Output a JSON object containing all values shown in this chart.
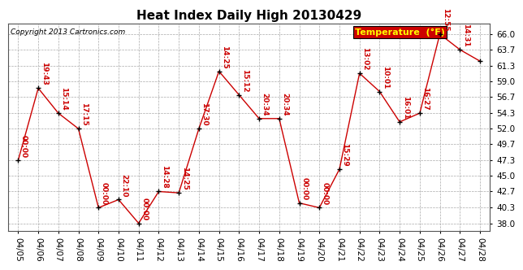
{
  "title": "Heat Index Daily High 20130429",
  "copyright": "Copyright 2013 Cartronics.com",
  "legend_label": "Temperature  (°F)",
  "dates": [
    "04/05",
    "04/06",
    "04/07",
    "04/08",
    "04/09",
    "04/10",
    "04/11",
    "04/12",
    "04/13",
    "04/14",
    "04/15",
    "04/16",
    "04/17",
    "04/18",
    "04/19",
    "04/20",
    "04/21",
    "04/22",
    "04/23",
    "04/24",
    "04/25",
    "04/26",
    "04/27",
    "04/28"
  ],
  "values": [
    47.3,
    58.0,
    54.3,
    52.0,
    40.3,
    41.5,
    38.0,
    42.7,
    42.5,
    52.0,
    60.5,
    57.0,
    53.5,
    53.5,
    41.0,
    40.3,
    46.0,
    60.2,
    57.5,
    53.0,
    54.3,
    66.0,
    63.7,
    62.0
  ],
  "labels": [
    "00:00",
    "19:43",
    "15:14",
    "17:15",
    "00:00",
    "22:10",
    "00:00",
    "14:28",
    "14:25",
    "17:30",
    "14:25",
    "15:12",
    "20:34",
    "20:34",
    "00:00",
    "00:00",
    "15:29",
    "13:02",
    "10:01",
    "16:01",
    "16:27",
    "12:55",
    "14:31",
    ""
  ],
  "yticks": [
    38.0,
    40.3,
    42.7,
    45.0,
    47.3,
    49.7,
    52.0,
    54.3,
    56.7,
    59.0,
    61.3,
    63.7,
    66.0
  ],
  "ymin": 36.8,
  "ymax": 67.5,
  "line_color": "#cc0000",
  "marker_color": "#000000",
  "label_color": "#cc0000",
  "background_color": "#ffffff",
  "grid_color": "#aaaaaa",
  "title_fontsize": 11,
  "label_fontsize": 6.5,
  "tick_fontsize": 7.5,
  "copyright_fontsize": 6.5,
  "legend_fontsize": 8,
  "legend_bg": "#cc0000",
  "legend_fg": "#ffff00"
}
